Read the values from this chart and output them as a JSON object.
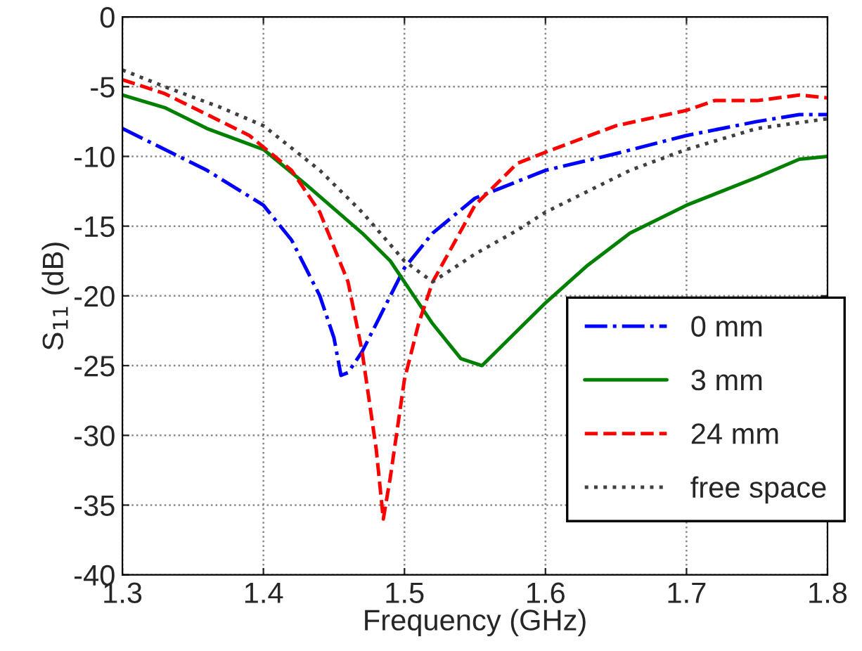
{
  "chart_data": {
    "type": "line",
    "xlabel": "Frequency (GHz)",
    "ylabel": "S$_{11}$ (dB)",
    "xlim": [
      1.3,
      1.8
    ],
    "xticks": [
      1.3,
      1.4,
      1.5,
      1.6,
      1.7,
      1.8
    ],
    "ylim": [
      -40,
      0
    ],
    "yticks": [
      -40,
      -35,
      -30,
      -25,
      -20,
      -15,
      -10,
      -5,
      0
    ],
    "grid": true,
    "legend": "bottom right",
    "series": [
      {
        "name": "0 mm",
        "color": "#0000ff",
        "line_style": "dashdot",
        "x": [
          1.3,
          1.33,
          1.36,
          1.4,
          1.42,
          1.44,
          1.45,
          1.455,
          1.46,
          1.47,
          1.48,
          1.5,
          1.52,
          1.55,
          1.6,
          1.65,
          1.7,
          1.75,
          1.78,
          1.8
        ],
        "values": [
          -8,
          -9.5,
          -11,
          -13.5,
          -16,
          -20,
          -23,
          -25.7,
          -25.5,
          -24,
          -22,
          -18,
          -15.5,
          -13,
          -11,
          -9.8,
          -8.5,
          -7.5,
          -7,
          -7
        ]
      },
      {
        "name": "3 mm",
        "color": "#008000",
        "line_style": "solid",
        "x": [
          1.3,
          1.33,
          1.36,
          1.4,
          1.43,
          1.47,
          1.49,
          1.5,
          1.52,
          1.54,
          1.555,
          1.57,
          1.6,
          1.63,
          1.66,
          1.7,
          1.75,
          1.78,
          1.8
        ],
        "values": [
          -5.6,
          -6.5,
          -8,
          -9.5,
          -12,
          -15.5,
          -17.5,
          -19,
          -22,
          -24.5,
          -25,
          -23.5,
          -20.5,
          -17.8,
          -15.5,
          -13.5,
          -11.5,
          -10.2,
          -10
        ]
      },
      {
        "name": "24 mm",
        "color": "#ff0000",
        "line_style": "dashed",
        "x": [
          1.3,
          1.33,
          1.36,
          1.39,
          1.42,
          1.44,
          1.46,
          1.47,
          1.48,
          1.485,
          1.49,
          1.5,
          1.51,
          1.52,
          1.55,
          1.58,
          1.6,
          1.65,
          1.7,
          1.72,
          1.75,
          1.78,
          1.8
        ],
        "values": [
          -4.5,
          -5.5,
          -7,
          -8.5,
          -11,
          -14,
          -19,
          -24,
          -31,
          -36,
          -33,
          -26,
          -22,
          -19,
          -13.5,
          -10.5,
          -9.7,
          -7.8,
          -6.7,
          -6,
          -6,
          -5.6,
          -5.8
        ]
      },
      {
        "name": "free space",
        "color": "#404040",
        "line_style": "dotted",
        "x": [
          1.3,
          1.33,
          1.37,
          1.4,
          1.44,
          1.47,
          1.5,
          1.52,
          1.55,
          1.58,
          1.6,
          1.63,
          1.66,
          1.7,
          1.75,
          1.8
        ],
        "values": [
          -3.8,
          -5,
          -6.5,
          -7.8,
          -11,
          -14,
          -17.5,
          -19,
          -17,
          -15.3,
          -14,
          -12.5,
          -11,
          -9.5,
          -8,
          -7.3
        ]
      }
    ]
  }
}
